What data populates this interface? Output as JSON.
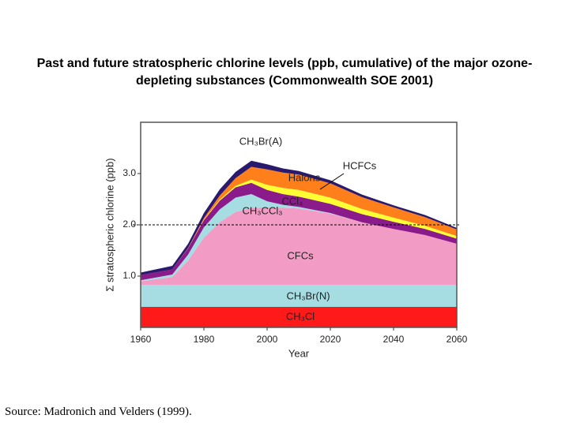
{
  "title": "Past and future stratospheric chlorine levels (ppb, cumulative) of the major ozone-depleting substances (Commonwealth SOE 2001)",
  "source": "Source: Madronich and Velders (1999).",
  "chart_data": {
    "type": "stacked_area",
    "x_label": "Year",
    "y_label": "Σ stratospheric chlorine (ppb)",
    "x": [
      1960,
      1970,
      1975,
      1980,
      1985,
      1990,
      1995,
      2000,
      2005,
      2010,
      2020,
      2030,
      2040,
      2050,
      2060
    ],
    "series": [
      {
        "name": "CH₃Cl",
        "color": "#ff1a1a",
        "values": [
          0.4,
          0.4,
          0.4,
          0.4,
          0.4,
          0.4,
          0.4,
          0.4,
          0.4,
          0.4,
          0.4,
          0.4,
          0.4,
          0.4,
          0.4
        ]
      },
      {
        "name": "CH₃Br(N)",
        "color": "#a6dde3",
        "values": [
          0.43,
          0.43,
          0.43,
          0.43,
          0.43,
          0.43,
          0.43,
          0.43,
          0.43,
          0.43,
          0.43,
          0.43,
          0.43,
          0.43,
          0.43
        ]
      },
      {
        "name": "CFCs",
        "color": "#f29bc4",
        "values": [
          0.07,
          0.15,
          0.47,
          0.92,
          1.22,
          1.42,
          1.5,
          1.51,
          1.5,
          1.49,
          1.39,
          1.22,
          1.09,
          0.97,
          0.8
        ]
      },
      {
        "name": "CH₃CCl₃",
        "color": "#a6dde3",
        "values": [
          0.02,
          0.05,
          0.12,
          0.2,
          0.25,
          0.28,
          0.27,
          0.12,
          0.06,
          0.03,
          0.01,
          0,
          0,
          0,
          0
        ]
      },
      {
        "name": "CCl₄",
        "color": "#8b1a8b",
        "values": [
          0.1,
          0.1,
          0.12,
          0.14,
          0.17,
          0.2,
          0.22,
          0.22,
          0.21,
          0.2,
          0.18,
          0.16,
          0.14,
          0.12,
          0.1
        ]
      },
      {
        "name": "HCFCs",
        "color": "#ffff33",
        "values": [
          0,
          0,
          0,
          0.01,
          0.02,
          0.03,
          0.06,
          0.1,
          0.12,
          0.13,
          0.12,
          0.1,
          0.08,
          0.06,
          0.05
        ]
      },
      {
        "name": "Halons",
        "color": "#ff7f1a",
        "values": [
          0,
          0,
          0.01,
          0.03,
          0.08,
          0.15,
          0.25,
          0.3,
          0.3,
          0.3,
          0.28,
          0.23,
          0.2,
          0.17,
          0.13
        ]
      },
      {
        "name": "CH₃Br(A)",
        "color": "#2a1a6e",
        "values": [
          0.05,
          0.07,
          0.08,
          0.1,
          0.12,
          0.12,
          0.12,
          0.1,
          0.08,
          0.07,
          0.06,
          0.05,
          0.04,
          0.04,
          0.03
        ]
      }
    ],
    "xlim": [
      1960,
      2060
    ],
    "xticks": [
      1960,
      1980,
      2000,
      2020,
      2040,
      2060
    ],
    "ylim": [
      0,
      4
    ],
    "yticks": [
      {
        "value": 1,
        "label": "1.0"
      },
      {
        "value": 2,
        "label": "2.0"
      },
      {
        "value": 3,
        "label": "3.0"
      }
    ],
    "reference_line": 2
  }
}
